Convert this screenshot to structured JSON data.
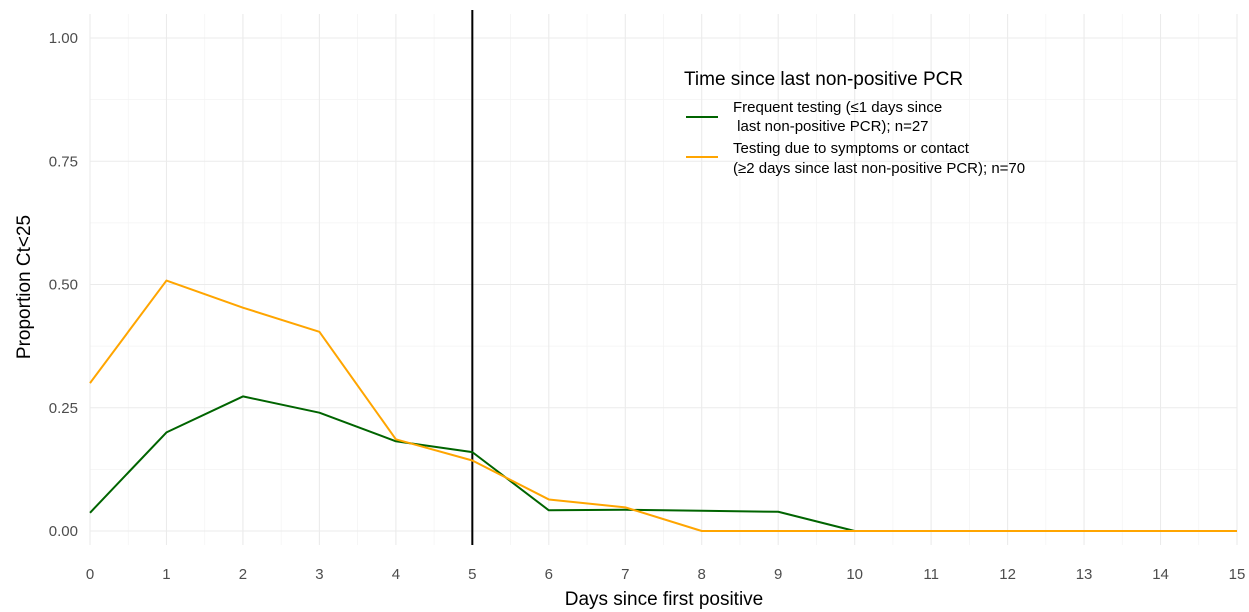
{
  "chart_data": {
    "type": "line",
    "xlabel": "Days since first positive",
    "ylabel": "Proportion Ct<25",
    "xlim": [
      0,
      15
    ],
    "ylim": [
      0,
      1
    ],
    "x_ticks": [
      "0",
      "1",
      "2",
      "3",
      "4",
      "5",
      "6",
      "7",
      "8",
      "9",
      "10",
      "11",
      "12",
      "13",
      "14",
      "15"
    ],
    "y_ticks": [
      "0.00",
      "0.25",
      "0.50",
      "0.75",
      "1.00"
    ],
    "grid": true,
    "vline_x": 5,
    "legend": {
      "title": "Time since last non-positive PCR",
      "placement": "top-right",
      "entries": [
        {
          "line1": "Frequent testing (≤1 days since",
          "line2": " last non-positive PCR); n=27"
        },
        {
          "line1": "Testing due to symptoms or contact",
          "line2": "(≥2 days since last non-positive PCR); n=70"
        }
      ]
    },
    "x": [
      0,
      1,
      2,
      3,
      4,
      5,
      6,
      7,
      8,
      9,
      10,
      11,
      12,
      13,
      14,
      15
    ],
    "series": [
      {
        "color": "#006400",
        "values": [
          0.037,
          0.2,
          0.273,
          0.24,
          0.182,
          0.16,
          0.042,
          0.043,
          0.041,
          0.039,
          0.0,
          0.0,
          0.0,
          0.0,
          0.0,
          0.0
        ]
      },
      {
        "color": "#FFA500",
        "values": [
          0.3,
          0.508,
          0.453,
          0.404,
          0.186,
          0.143,
          0.064,
          0.048,
          0.0,
          0.0,
          0.0,
          0.0,
          0.0,
          0.0,
          0.0,
          0.0
        ]
      }
    ]
  }
}
